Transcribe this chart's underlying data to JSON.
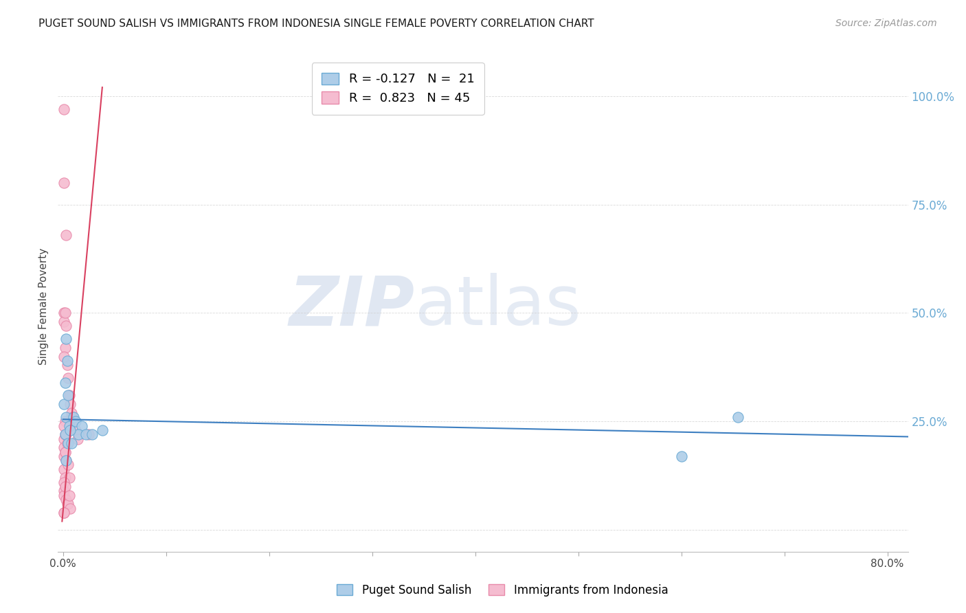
{
  "title": "PUGET SOUND SALISH VS IMMIGRANTS FROM INDONESIA SINGLE FEMALE POVERTY CORRELATION CHART",
  "source": "Source: ZipAtlas.com",
  "ylabel": "Single Female Poverty",
  "xlabel": "",
  "xlim": [
    -0.005,
    0.82
  ],
  "ylim": [
    -0.05,
    1.08
  ],
  "xticks": [
    0.0,
    0.1,
    0.2,
    0.3,
    0.4,
    0.5,
    0.6,
    0.7,
    0.8
  ],
  "xticklabels": [
    "0.0%",
    "",
    "",
    "",
    "",
    "",
    "",
    "",
    "80.0%"
  ],
  "yticks_right": [
    0.25,
    0.5,
    0.75,
    1.0
  ],
  "yticklabels_right": [
    "25.0%",
    "50.0%",
    "75.0%",
    "100.0%"
  ],
  "blue_color": "#aecde8",
  "blue_edge_color": "#6aaad4",
  "pink_color": "#f5bcd0",
  "pink_edge_color": "#e88aaa",
  "trend_blue": "#3d7fc1",
  "trend_pink": "#d94060",
  "legend_blue_R": "-0.127",
  "legend_blue_N": "21",
  "legend_pink_R": "0.823",
  "legend_pink_N": "45",
  "watermark_zip": "ZIP",
  "watermark_atlas": "atlas",
  "blue_scatter_x": [
    0.003,
    0.004,
    0.002,
    0.001,
    0.005,
    0.003,
    0.006,
    0.002,
    0.01,
    0.012,
    0.018,
    0.015,
    0.022,
    0.028,
    0.038,
    0.005,
    0.003,
    0.007,
    0.6,
    0.655,
    0.008
  ],
  "blue_scatter_y": [
    0.44,
    0.39,
    0.34,
    0.29,
    0.31,
    0.26,
    0.24,
    0.22,
    0.26,
    0.25,
    0.24,
    0.22,
    0.22,
    0.22,
    0.23,
    0.2,
    0.16,
    0.23,
    0.17,
    0.26,
    0.2
  ],
  "pink_scatter_x": [
    0.001,
    0.001,
    0.001,
    0.001,
    0.001,
    0.001,
    0.001,
    0.001,
    0.001,
    0.002,
    0.002,
    0.002,
    0.002,
    0.002,
    0.003,
    0.003,
    0.003,
    0.004,
    0.004,
    0.005,
    0.005,
    0.006,
    0.006,
    0.007,
    0.008,
    0.009,
    0.01,
    0.012,
    0.014,
    0.001,
    0.001,
    0.001,
    0.001,
    0.002,
    0.002,
    0.002,
    0.003,
    0.003,
    0.004,
    0.005,
    0.006,
    0.007,
    0.001,
    0.001,
    0.025
  ],
  "pink_scatter_y": [
    0.97,
    0.8,
    0.5,
    0.48,
    0.21,
    0.19,
    0.17,
    0.14,
    0.09,
    0.42,
    0.25,
    0.22,
    0.18,
    0.12,
    0.68,
    0.22,
    0.16,
    0.38,
    0.2,
    0.35,
    0.15,
    0.31,
    0.12,
    0.29,
    0.27,
    0.26,
    0.25,
    0.23,
    0.21,
    0.4,
    0.24,
    0.11,
    0.08,
    0.5,
    0.18,
    0.1,
    0.47,
    0.07,
    0.06,
    0.06,
    0.08,
    0.05,
    0.04,
    0.04,
    0.22
  ],
  "blue_trendline_x": [
    0.0,
    0.82
  ],
  "blue_trendline_y": [
    0.255,
    0.215
  ],
  "pink_trendline_x": [
    -0.001,
    0.038
  ],
  "pink_trendline_y": [
    0.02,
    1.02
  ],
  "background_color": "#ffffff",
  "grid_color": "#d0d0d0"
}
